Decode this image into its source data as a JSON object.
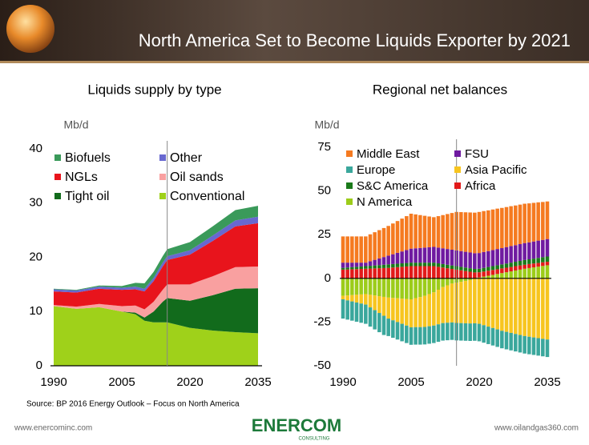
{
  "header": {
    "title": "North America Set to Become Liquids Exporter by 2021"
  },
  "chart_data": [
    {
      "type": "area",
      "stacked": true,
      "title": "Liquids supply by type",
      "y_label": "Mb/d",
      "x": [
        1990,
        1995,
        2000,
        2005,
        2008,
        2010,
        2012,
        2014,
        2015,
        2020,
        2025,
        2030,
        2035
      ],
      "xlim": [
        1990,
        2035
      ],
      "xticks": [
        1990,
        2005,
        2020,
        2035
      ],
      "ylim": [
        0,
        40
      ],
      "yticks": [
        0,
        10,
        20,
        30,
        40
      ],
      "vline": 2015,
      "series": [
        {
          "name": "Biofuels",
          "color": "#3a9a5a",
          "values": [
            0.1,
            0.1,
            0.2,
            0.3,
            0.7,
            1,
            1.1,
            1.2,
            1.3,
            1.5,
            1.7,
            1.9,
            2
          ]
        },
        {
          "name": "Other",
          "color": "#6868d0",
          "values": [
            0.4,
            0.4,
            0.4,
            0.4,
            0.5,
            0.5,
            0.6,
            0.7,
            0.7,
            0.8,
            1,
            1.1,
            1.2
          ]
        },
        {
          "name": "NGLs",
          "color": "#e8141c",
          "values": [
            2.5,
            2.6,
            2.8,
            3,
            3,
            3.3,
            3.8,
            4.3,
            4.5,
            5.5,
            6.5,
            7.5,
            8
          ]
        },
        {
          "name": "Oil sands",
          "color": "#f9a0a0",
          "values": [
            0.2,
            0.4,
            0.6,
            1,
            1.3,
            1.5,
            1.8,
            2.2,
            2.5,
            3,
            3.5,
            4,
            4
          ]
        },
        {
          "name": "Tight oil",
          "color": "#126b1c",
          "values": [
            0,
            0,
            0,
            0,
            0.3,
            0.6,
            2,
            3.8,
            4.5,
            5,
            6.5,
            8,
            8.3
          ]
        },
        {
          "name": "Conventional",
          "color": "#9fd11a",
          "values": [
            11,
            10.5,
            10.8,
            10,
            9.5,
            8.3,
            8,
            8,
            8,
            7,
            6.5,
            6.2,
            6
          ]
        }
      ]
    },
    {
      "type": "bar",
      "stacked": true,
      "title": "Regional net balances",
      "y_label": "Mb/d",
      "x": [
        1990,
        1991,
        1992,
        1993,
        1994,
        1995,
        1996,
        1997,
        1998,
        1999,
        2000,
        2001,
        2002,
        2003,
        2004,
        2005,
        2006,
        2007,
        2008,
        2009,
        2010,
        2011,
        2012,
        2013,
        2014,
        2015,
        2016,
        2017,
        2018,
        2019,
        2020,
        2021,
        2022,
        2023,
        2024,
        2025,
        2026,
        2027,
        2028,
        2029,
        2030,
        2031,
        2032,
        2033,
        2034,
        2035
      ],
      "xlim": [
        1990,
        2035
      ],
      "xticks": [
        1990,
        2005,
        2020,
        2035
      ],
      "ylim": [
        -50,
        75
      ],
      "yticks": [
        -50,
        -25,
        0,
        25,
        50,
        75
      ],
      "vline": 2015,
      "series": [
        {
          "name": "Middle East",
          "color": "#f57a20",
          "values": [
            15,
            15,
            15,
            15,
            15,
            15,
            15.4,
            15.8,
            16.2,
            16.6,
            17,
            17.6,
            18.2,
            18.8,
            19.4,
            20,
            19.4,
            18.8,
            18.2,
            17.6,
            17,
            18,
            19,
            20,
            21,
            22,
            22.3,
            22.6,
            22.9,
            23.2,
            23.5,
            23.4,
            23.3,
            23.2,
            23.1,
            23,
            22.9,
            22.8,
            22.7,
            22.6,
            22.5,
            22.3,
            22.1,
            21.9,
            21.7,
            21.5
          ]
        },
        {
          "name": "FSU",
          "color": "#6f1aa0",
          "values": [
            3,
            2.8,
            2.6,
            2.4,
            2.2,
            2,
            2.6,
            3.2,
            3.8,
            4.4,
            5,
            5.6,
            6.2,
            6.8,
            7.4,
            8,
            8.2,
            8.4,
            8.6,
            8.8,
            9,
            9,
            9,
            9,
            9,
            9,
            9,
            9,
            9,
            9,
            9,
            9.1,
            9.1,
            9.2,
            9.3,
            9.3,
            9.4,
            9.5,
            9.5,
            9.6,
            9.7,
            9.7,
            9.8,
            9.9,
            9.9,
            10
          ]
        },
        {
          "name": "Europe",
          "color": "#3aa79c",
          "values": [
            -11,
            -11,
            -11,
            -11,
            -11,
            -11,
            -11,
            -11,
            -11,
            -11,
            -10,
            -10,
            -10,
            -10,
            -10,
            -10,
            -10,
            -10,
            -10,
            -10,
            -10,
            -10,
            -10,
            -10,
            -10,
            -10,
            -10,
            -10,
            -10,
            -10,
            -10,
            -10,
            -10,
            -10,
            -10,
            -10,
            -10,
            -10,
            -10,
            -10,
            -10,
            -10,
            -10,
            -10,
            -10,
            -10
          ]
        },
        {
          "name": "Asia Pacific",
          "color": "#f7c51f",
          "values": [
            -2,
            -2.8,
            -3.6,
            -4.4,
            -5.2,
            -6,
            -7.2,
            -8.4,
            -9.6,
            -10.8,
            -12,
            -12.8,
            -13.6,
            -14.4,
            -15.2,
            -16,
            -16.6,
            -17.2,
            -17.8,
            -18.4,
            -19,
            -19.8,
            -20.6,
            -21.4,
            -22.2,
            -23,
            -23.6,
            -24.2,
            -24.8,
            -25.4,
            -26,
            -26.8,
            -27.6,
            -28.4,
            -29.2,
            -30,
            -30.6,
            -31.2,
            -31.8,
            -32.4,
            -33,
            -33.4,
            -33.8,
            -34.2,
            -34.6,
            -35
          ]
        },
        {
          "name": "S&C America",
          "color": "#1a7a1a",
          "values": [
            1,
            1.1,
            1.2,
            1.3,
            1.4,
            1.5,
            1.6,
            1.7,
            1.8,
            1.9,
            2,
            2,
            2,
            2,
            2,
            2,
            2,
            2,
            2,
            2,
            2,
            2,
            2,
            2,
            2,
            2,
            2,
            2,
            2,
            2,
            2,
            2.1,
            2.1,
            2.2,
            2.3,
            2.3,
            2.4,
            2.5,
            2.5,
            2.6,
            2.7,
            2.7,
            2.8,
            2.9,
            2.9,
            3
          ]
        },
        {
          "name": "Africa",
          "color": "#e21a1a",
          "values": [
            5,
            5.1,
            5.2,
            5.3,
            5.4,
            5.5,
            5.6,
            5.7,
            5.8,
            5.9,
            6,
            6.2,
            6.4,
            6.6,
            6.8,
            7,
            7,
            7,
            7,
            7,
            7,
            6.6,
            6.2,
            5.8,
            5.4,
            5,
            4.6,
            4.2,
            3.8,
            3.4,
            3,
            2.9,
            2.9,
            2.8,
            2.7,
            2.7,
            2.6,
            2.5,
            2.5,
            2.4,
            2.3,
            2.3,
            2.2,
            2.1,
            2.1,
            2
          ]
        },
        {
          "name": "N America",
          "color": "#9ccc1a",
          "values": [
            -10,
            -9.8,
            -9.6,
            -9.4,
            -9.2,
            -9,
            -9.4,
            -9.8,
            -10.2,
            -10.6,
            -11,
            -11.2,
            -11.4,
            -11.6,
            -11.8,
            -12,
            -11.3,
            -10.7,
            -10,
            -9,
            -8,
            -6.5,
            -5,
            -4,
            -3,
            -2.5,
            -2,
            -1.5,
            -1,
            -0.3,
            0.5,
            1,
            1.5,
            2,
            2.5,
            3,
            3.5,
            4,
            4.5,
            5,
            5.5,
            5.9,
            6.3,
            6.7,
            7.1,
            7.5
          ]
        }
      ]
    }
  ],
  "footer": {
    "source": "Source: BP 2016 Energy Outlook – Focus on North America",
    "left_url": "www.enercominc.com",
    "right_url": "www.oilandgas360.com",
    "logo": "ENERCOM",
    "logo_sub": "CONSULTING"
  }
}
